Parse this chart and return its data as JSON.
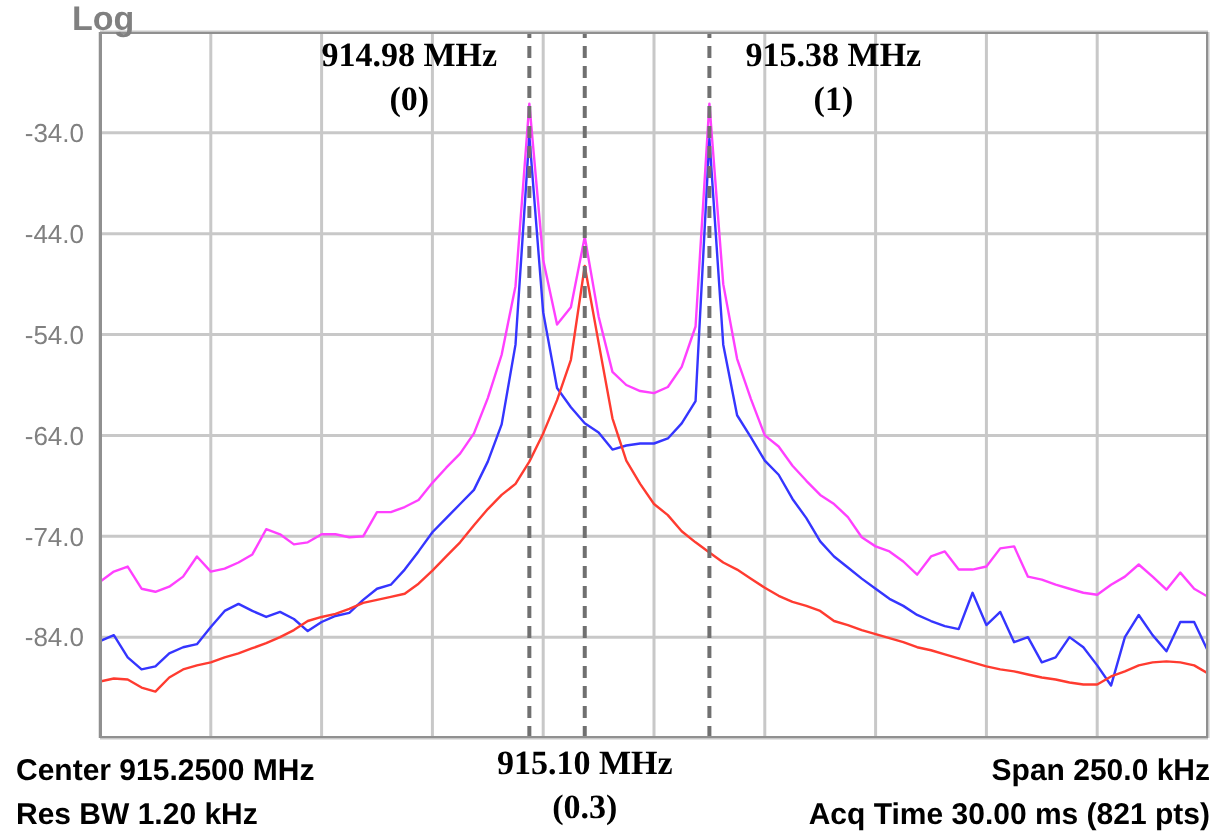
{
  "chart_data": {
    "type": "line",
    "categories": [
      null,
      null,
      null,
      null,
      null,
      null,
      null,
      null,
      null,
      null,
      null,
      null,
      null,
      null,
      null,
      null,
      null,
      null,
      null,
      null,
      null,
      null,
      null,
      null,
      null,
      null,
      null,
      null,
      null,
      null,
      null,
      null,
      null,
      null,
      null,
      null,
      null,
      null,
      null,
      null,
      null,
      null,
      null,
      null,
      null,
      null,
      null,
      null,
      null,
      null,
      null,
      null,
      null,
      null,
      null,
      null,
      null,
      null,
      null,
      null,
      null,
      null,
      null,
      null,
      null,
      null,
      null,
      null,
      null,
      null,
      null,
      null,
      null,
      null,
      null,
      null,
      null,
      null,
      null,
      null,
      null
    ],
    "ylim": [
      -94,
      -24
    ],
    "yticks": [
      {
        "value": -34,
        "label": "-34.0"
      },
      {
        "value": -44,
        "label": "-44.0"
      },
      {
        "value": -54,
        "label": "-54.0"
      },
      {
        "value": -64,
        "label": "-64.0"
      },
      {
        "value": -74,
        "label": "-74.0"
      },
      {
        "value": -84,
        "label": "-84.0"
      }
    ],
    "tick_labels": "y",
    "grid": true,
    "marker": "none",
    "line_style": "solid",
    "series": [
      {
        "color": "#ff40ff",
        "values": [
          -78.5,
          -77.5,
          -77,
          -79.2,
          -79.5,
          -79,
          -78,
          -76,
          -77.5,
          -77.2,
          -76.6,
          -75.8,
          -73.3,
          -73.8,
          -74.8,
          -74.6,
          -73.8,
          -73.8,
          -74.1,
          -74,
          -71.6,
          -71.6,
          -71.1,
          -70.4,
          -68.7,
          -67.2,
          -65.8,
          -63.8,
          -60.3,
          -56,
          -49.2,
          -31.1,
          -46.6,
          -53,
          -51.3,
          -44.3,
          -52.2,
          -57.7,
          -59,
          -59.6,
          -59.8,
          -59.2,
          -57.2,
          -53.2,
          -31.1,
          -49,
          -56.4,
          -60.4,
          -64,
          -65.1,
          -67,
          -68.5,
          -69.9,
          -70.8,
          -72.1,
          -74.1,
          -75,
          -75.5,
          -76.5,
          -77.8,
          -76,
          -75.5,
          -77.3,
          -77.3,
          -77,
          -75.2,
          -75,
          -78,
          -78.3,
          -78.8,
          -79.2,
          -79.6,
          -79.8,
          -78.8,
          -78,
          -76.8,
          -78,
          -79.3,
          -77.6,
          -79.2,
          -80
        ]
      },
      {
        "color": "#3535ff",
        "values": [
          -84.4,
          -83.8,
          -86,
          -87.2,
          -86.9,
          -85.6,
          -85,
          -84.7,
          -83,
          -81.4,
          -80.7,
          -81.4,
          -82,
          -81.5,
          -82.2,
          -83.4,
          -82.5,
          -81.9,
          -81.6,
          -80.3,
          -79.2,
          -78.8,
          -77.3,
          -75.5,
          -73.6,
          -72.2,
          -70.8,
          -69.4,
          -66.6,
          -62.9,
          -55,
          -34.3,
          -51.8,
          -59.3,
          -61.2,
          -62.8,
          -63.7,
          -65.4,
          -65,
          -64.8,
          -64.8,
          -64.3,
          -62.8,
          -60.6,
          -34.6,
          -55,
          -62,
          -64.2,
          -66.5,
          -67.9,
          -70.3,
          -72.2,
          -74.5,
          -76,
          -77.1,
          -78.2,
          -79.2,
          -80.2,
          -80.9,
          -81.8,
          -82.4,
          -82.9,
          -83.2,
          -79.6,
          -82.8,
          -81.5,
          -84.5,
          -84,
          -86.5,
          -86,
          -84,
          -85,
          -86.8,
          -88.8,
          -84,
          -81.8,
          -83.8,
          -85.4,
          -82.5,
          -82.5,
          -85.4
        ]
      },
      {
        "color": "#ff3b30",
        "values": [
          -88.4,
          -88.1,
          -88.2,
          -89,
          -89.4,
          -88,
          -87.2,
          -86.8,
          -86.5,
          -86,
          -85.6,
          -85.1,
          -84.6,
          -84,
          -83.3,
          -82.4,
          -82,
          -81.7,
          -81.2,
          -80.6,
          -80.3,
          -80,
          -79.7,
          -78.7,
          -77.4,
          -76,
          -74.6,
          -72.9,
          -71.3,
          -69.9,
          -68.8,
          -66.6,
          -63.8,
          -60.5,
          -56.5,
          -47.2,
          -54.8,
          -62.3,
          -66.5,
          -68.8,
          -70.8,
          -71.9,
          -73.5,
          -74.6,
          -75.6,
          -76.6,
          -77.3,
          -78.2,
          -79.1,
          -79.9,
          -80.5,
          -80.9,
          -81.4,
          -82.4,
          -82.8,
          -83.3,
          -83.7,
          -84.1,
          -84.5,
          -85,
          -85.3,
          -85.7,
          -86.1,
          -86.5,
          -86.9,
          -87.2,
          -87.4,
          -87.7,
          -88,
          -88.2,
          -88.5,
          -88.7,
          -88.7,
          -87.9,
          -87.4,
          -86.8,
          -86.5,
          -86.4,
          -86.5,
          -86.8,
          -87.6
        ]
      }
    ],
    "annotations": [
      "Log",
      "Center 915.2500 MHz",
      "Res BW 1.20 kHz",
      "Span 250.0 kHz",
      "Acq Time 30.00 ms (821 pts)",
      "914.98 MHz\n(0)",
      "915.10 MHz\n(0.3)",
      "915.38 MHz\n(1)"
    ]
  }
}
